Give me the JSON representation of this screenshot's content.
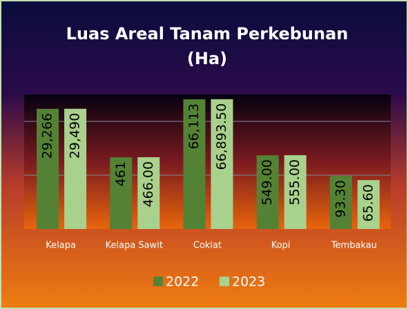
{
  "chart_data": {
    "type": "bar",
    "title": [
      "Luas Areal Tanam Perkebunan",
      "(Ha)"
    ],
    "categories": [
      "Kelapa",
      "Kelapa Sawit",
      "Coklat",
      "Kopi",
      "Tembakau"
    ],
    "series": [
      {
        "name": "2022",
        "color": "#548235",
        "values": [
          29266,
          461,
          66113,
          549,
          93.3
        ],
        "value_labels": [
          "29,266",
          "461",
          "66,113",
          "549.00",
          "93.30"
        ]
      },
      {
        "name": "2023",
        "color": "#a9d18e",
        "values": [
          29490,
          466,
          66893.5,
          555,
          65.6
        ],
        "value_labels": [
          "29,490",
          "466.00",
          "66,893.50",
          "555.00",
          "65.60"
        ]
      }
    ],
    "log_scale": true,
    "ylim": [
      1,
      100000
    ],
    "yticks": [
      100,
      10000
    ],
    "grid": true,
    "legend": "bottom"
  }
}
